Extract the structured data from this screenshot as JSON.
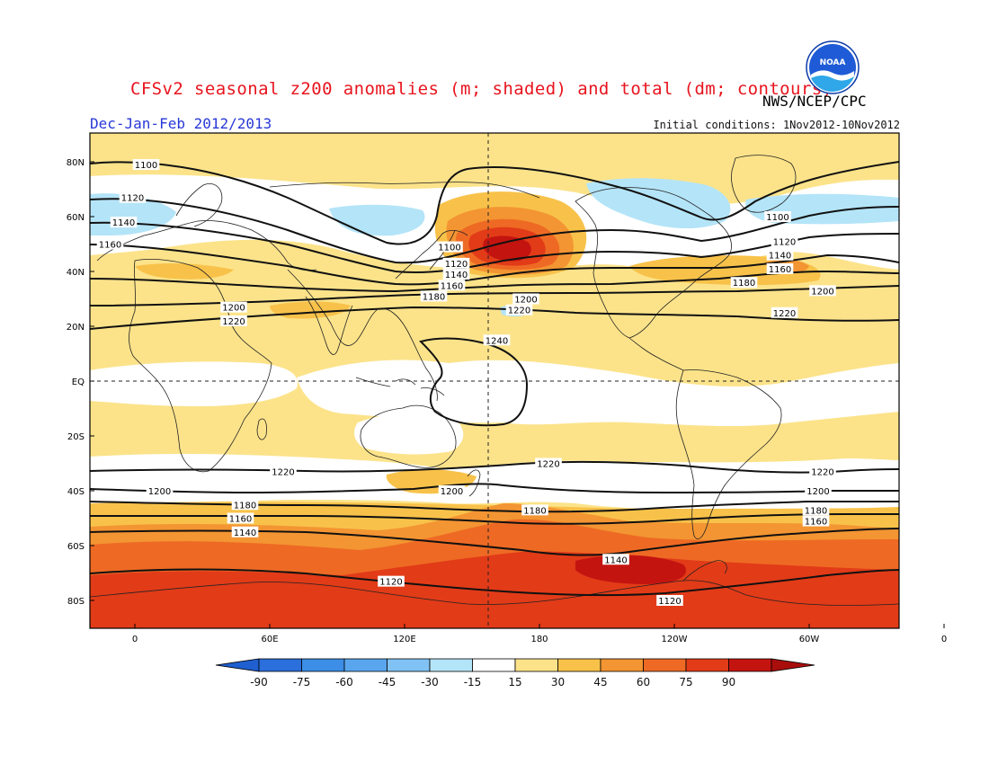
{
  "header": {
    "title": "CFSv2 seasonal z200 anomalies (m; shaded) and total (dm; contours)",
    "agency": "NWS/NCEP/CPC",
    "season": "Dec-Jan-Feb 2012/2013",
    "initial_conditions": "Initial conditions: 1Nov2012-10Nov2012",
    "logo_text": "NOAA"
  },
  "axes": {
    "lat_labels": [
      "80N",
      "60N",
      "40N",
      "20N",
      "EQ",
      "20S",
      "40S",
      "60S",
      "80S"
    ],
    "lon_labels": [
      "0",
      "60E",
      "120E",
      "180",
      "120W",
      "60W",
      "0"
    ]
  },
  "contours": {
    "labels": [
      {
        "text": "1100",
        "lon": 5,
        "lat": 79
      },
      {
        "text": "1120",
        "lon": -1,
        "lat": 67
      },
      {
        "text": "1140",
        "lon": -5,
        "lat": 58
      },
      {
        "text": "1160",
        "lon": -11,
        "lat": 50
      },
      {
        "text": "1100",
        "lon": 140,
        "lat": 49
      },
      {
        "text": "1120",
        "lon": 143,
        "lat": 43
      },
      {
        "text": "1140",
        "lon": 143,
        "lat": 39
      },
      {
        "text": "1160",
        "lon": 141,
        "lat": 35
      },
      {
        "text": "1180",
        "lon": 133,
        "lat": 31
      },
      {
        "text": "1200",
        "lon": 174,
        "lat": 30
      },
      {
        "text": "1220",
        "lon": 171,
        "lat": 26
      },
      {
        "text": "1200",
        "lon": 44,
        "lat": 27
      },
      {
        "text": "1220",
        "lon": 44,
        "lat": 22
      },
      {
        "text": "1240",
        "lon": 161,
        "lat": 15
      },
      {
        "text": "1100",
        "lon": -74,
        "lat": 60
      },
      {
        "text": "1120",
        "lon": -71,
        "lat": 51
      },
      {
        "text": "1140",
        "lon": -73,
        "lat": 46
      },
      {
        "text": "1160",
        "lon": -73,
        "lat": 41
      },
      {
        "text": "1180",
        "lon": -89,
        "lat": 36
      },
      {
        "text": "1200",
        "lon": -54,
        "lat": 33
      },
      {
        "text": "1220",
        "lon": -71,
        "lat": 25
      },
      {
        "text": "1220",
        "lon": 66,
        "lat": -33
      },
      {
        "text": "1220",
        "lon": -176,
        "lat": -30
      },
      {
        "text": "1220",
        "lon": -54,
        "lat": -33
      },
      {
        "text": "1200",
        "lon": 11,
        "lat": -40
      },
      {
        "text": "1200",
        "lon": 141,
        "lat": -40
      },
      {
        "text": "1200",
        "lon": -56,
        "lat": -40
      },
      {
        "text": "1180",
        "lon": 49,
        "lat": -45
      },
      {
        "text": "1180",
        "lon": 178,
        "lat": -47
      },
      {
        "text": "1180",
        "lon": -57,
        "lat": -47
      },
      {
        "text": "1160",
        "lon": 47,
        "lat": -50
      },
      {
        "text": "1160",
        "lon": -57,
        "lat": -51
      },
      {
        "text": "1140",
        "lon": 49,
        "lat": -55
      },
      {
        "text": "1140",
        "lon": -146,
        "lat": -65
      },
      {
        "text": "1120",
        "lon": 114,
        "lat": -73
      },
      {
        "text": "1120",
        "lon": -122,
        "lat": -80
      }
    ]
  },
  "colorbar": {
    "labels": [
      "-90",
      "-75",
      "-60",
      "-45",
      "-30",
      "-15",
      "15",
      "30",
      "45",
      "60",
      "75",
      "90"
    ],
    "colors": [
      "#2a6fdb",
      "#3c8ee6",
      "#5aa6ee",
      "#80c2f4",
      "#b4e4f8",
      "#ffffff",
      "#fce38a",
      "#f8c24a",
      "#f39532",
      "#ee6a24",
      "#e23b18",
      "#c41410"
    ]
  },
  "colors": {
    "title": "#e8141e",
    "season": "#2838d8",
    "shade_15": "#fce38a",
    "shade_30": "#f8c24a",
    "shade_45": "#f39532",
    "shade_60": "#ee6a24",
    "shade_75": "#e23b18",
    "shade_90": "#c41410",
    "shade_neg15": "#b4e4f8"
  }
}
